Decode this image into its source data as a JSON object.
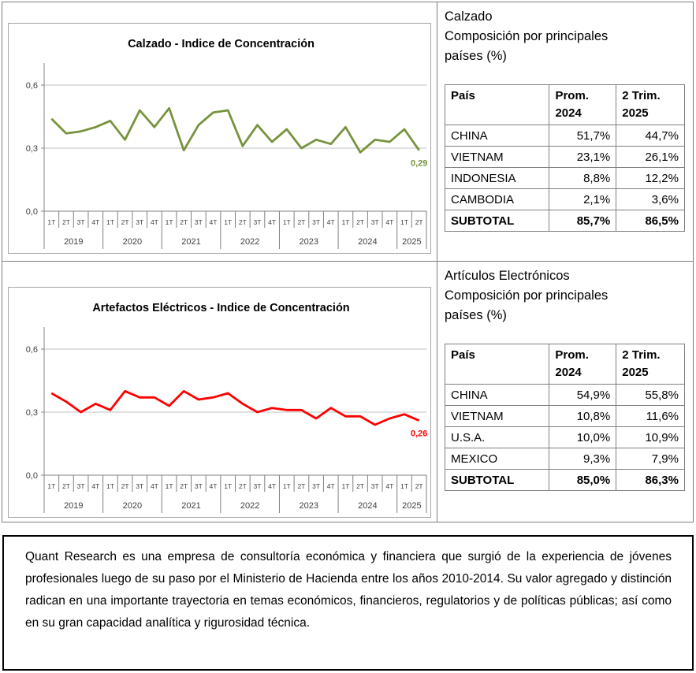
{
  "colors": {
    "calzado_line": "#77933C",
    "electronicos_line": "#FF0000",
    "gridline": "#C0C0C0",
    "axis": "#808080",
    "axis_text": "#404040",
    "panel_border": "#7f7f7f",
    "chart_border": "#a6a6a6"
  },
  "chart_data": [
    {
      "type": "line",
      "title": "Calzado - Indice de Concentración",
      "line_color": "#77933C",
      "ylim": [
        0,
        0.6
      ],
      "grid": true,
      "legend": "none",
      "y_ticks": [
        {
          "v": 0.0,
          "label": "0,0"
        },
        {
          "v": 0.3,
          "label": "0,3"
        },
        {
          "v": 0.6,
          "label": "0,6"
        }
      ],
      "quarters": [
        "1T",
        "2T",
        "3T",
        "4T",
        "1T",
        "2T",
        "3T",
        "4T",
        "1T",
        "2T",
        "3T",
        "4T",
        "1T",
        "2T",
        "3T",
        "4T",
        "1T",
        "2T",
        "3T",
        "4T",
        "1T",
        "2T",
        "3T",
        "4T",
        "1T",
        "2T"
      ],
      "year_groups": [
        {
          "year": "2019",
          "count": 4
        },
        {
          "year": "2020",
          "count": 4
        },
        {
          "year": "2021",
          "count": 4
        },
        {
          "year": "2022",
          "count": 4
        },
        {
          "year": "2023",
          "count": 4
        },
        {
          "year": "2024",
          "count": 4
        },
        {
          "year": "2025",
          "count": 2
        }
      ],
      "values": [
        0.44,
        0.37,
        0.38,
        0.4,
        0.43,
        0.34,
        0.48,
        0.4,
        0.49,
        0.29,
        0.41,
        0.47,
        0.48,
        0.31,
        0.41,
        0.33,
        0.39,
        0.3,
        0.34,
        0.32,
        0.4,
        0.28,
        0.34,
        0.33,
        0.39,
        0.29
      ],
      "last_point_label": "0,29"
    },
    {
      "type": "line",
      "title": "Artefactos Eléctricos - Indice de Concentración",
      "line_color": "#FF0000",
      "ylim": [
        0,
        0.6
      ],
      "grid": true,
      "legend": "none",
      "y_ticks": [
        {
          "v": 0.0,
          "label": "0,0"
        },
        {
          "v": 0.3,
          "label": "0,3"
        },
        {
          "v": 0.6,
          "label": "0,6"
        }
      ],
      "quarters": [
        "1T",
        "2T",
        "3T",
        "4T",
        "1T",
        "2T",
        "3T",
        "4T",
        "1T",
        "2T",
        "3T",
        "4T",
        "1T",
        "2T",
        "3T",
        "4T",
        "1T",
        "2T",
        "3T",
        "4T",
        "1T",
        "2T",
        "3T",
        "4T",
        "1T",
        "2T"
      ],
      "year_groups": [
        {
          "year": "2019",
          "count": 4
        },
        {
          "year": "2020",
          "count": 4
        },
        {
          "year": "2021",
          "count": 4
        },
        {
          "year": "2022",
          "count": 4
        },
        {
          "year": "2023",
          "count": 4
        },
        {
          "year": "2024",
          "count": 4
        },
        {
          "year": "2025",
          "count": 2
        }
      ],
      "values": [
        0.39,
        0.35,
        0.3,
        0.34,
        0.31,
        0.4,
        0.37,
        0.37,
        0.33,
        0.4,
        0.36,
        0.37,
        0.39,
        0.34,
        0.3,
        0.32,
        0.31,
        0.31,
        0.27,
        0.32,
        0.28,
        0.28,
        0.24,
        0.27,
        0.29,
        0.26
      ],
      "last_point_label": "0,26"
    },
    {
      "type": "table",
      "title": "Calzado\nComposición por principales\npaíses (%)",
      "columns": [
        "País",
        "Prom.\n2024",
        "2 Trim.\n2025"
      ],
      "rows": [
        [
          "CHINA",
          "51,7%",
          "44,7%"
        ],
        [
          "VIETNAM",
          "23,1%",
          "26,1%"
        ],
        [
          "INDONESIA",
          "8,8%",
          "12,2%"
        ],
        [
          "CAMBODIA",
          "2,1%",
          "3,6%"
        ],
        [
          "SUBTOTAL",
          "85,7%",
          "86,5%"
        ]
      ],
      "bold_last_row": true
    },
    {
      "type": "table",
      "title": "Artículos Electrónicos\nComposición por principales\npaíses (%)",
      "columns": [
        "País",
        "Prom.\n2024",
        "2 Trim.\n2025"
      ],
      "rows": [
        [
          "CHINA",
          "54,9%",
          "55,8%"
        ],
        [
          "VIETNAM",
          "10,8%",
          "11,6%"
        ],
        [
          "U.S.A.",
          "10,0%",
          "10,9%"
        ],
        [
          "MEXICO",
          "9,3%",
          "7,9%"
        ],
        [
          "SUBTOTAL",
          "85,0%",
          "86,3%"
        ]
      ],
      "bold_last_row": true
    }
  ],
  "about": {
    "text": "Quant Research es una empresa de consultoría económica y financiera que surgió de la experiencia de jóvenes profesionales luego de su paso por el Ministerio de Hacienda entre los años 2010-2014. Su valor agregado y distinción radican en una importante trayectoria en temas económicos, financieros, regulatorios y de políticas públicas; así como en su gran capacidad analítica y rigurosidad técnica."
  }
}
